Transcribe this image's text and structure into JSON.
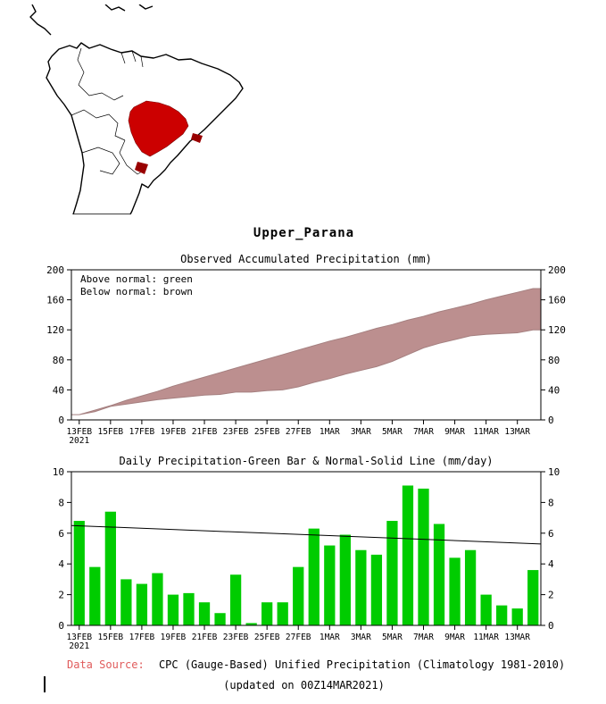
{
  "page": {
    "title": "Upper_Parana",
    "footer": {
      "data_source_label": "Data Source:",
      "data_source_text": "CPC (Gauge-Based) Unified Precipitation (Climatology 1981-2010)",
      "updated_text": "(updated on 00Z14MAR2021)"
    }
  },
  "map": {
    "description": "South America outline map with the Upper Parana basin highlighted in red"
  },
  "colors": {
    "bar_green": "#00cc00",
    "band_brown": "#bc8f8f",
    "band_edge": "#a58080",
    "map_region_red": "#cc0000",
    "map_region_dark_red": "#990000",
    "data_source_red": "#e05c5c",
    "axis_black": "#000000"
  },
  "chart_data": [
    {
      "type": "area",
      "title": "Observed Accumulated Precipitation (mm)",
      "legend": [
        "Above normal: green",
        "Below normal: brown"
      ],
      "categories": [
        "13FEB",
        "14FEB",
        "15FEB",
        "16FEB",
        "17FEB",
        "18FEB",
        "19FEB",
        "20FEB",
        "21FEB",
        "22FEB",
        "23FEB",
        "24FEB",
        "25FEB",
        "26FEB",
        "27FEB",
        "28FEB",
        "1MAR",
        "2MAR",
        "3MAR",
        "4MAR",
        "5MAR",
        "6MAR",
        "7MAR",
        "8MAR",
        "9MAR",
        "10MAR",
        "11MAR",
        "12MAR",
        "13MAR",
        "14MAR"
      ],
      "x_tick_labels": [
        "13FEB",
        "15FEB",
        "17FEB",
        "19FEB",
        "21FEB",
        "23FEB",
        "25FEB",
        "27FEB",
        "1MAR",
        "3MAR",
        "5MAR",
        "7MAR",
        "9MAR",
        "11MAR",
        "13MAR"
      ],
      "x_first_tick_year": "2021",
      "ylim": [
        0,
        200
      ],
      "yticks": [
        0,
        40,
        80,
        120,
        160,
        200
      ],
      "series": [
        {
          "name": "normal accumulated (band upper edge)",
          "values": [
            7,
            13,
            19,
            26,
            32,
            38,
            45,
            51,
            57,
            63,
            69,
            75,
            81,
            87,
            93,
            99,
            105,
            110,
            116,
            122,
            127,
            133,
            138,
            144,
            149,
            154,
            160,
            165,
            170,
            175
          ]
        },
        {
          "name": "observed accumulated (band lower edge)",
          "values": [
            7,
            11,
            18,
            21,
            24,
            27,
            29,
            31,
            33,
            34,
            37,
            37,
            39,
            40,
            44,
            50,
            55,
            61,
            66,
            71,
            78,
            87,
            96,
            102,
            107,
            112,
            114,
            115,
            116,
            120
          ]
        }
      ]
    },
    {
      "type": "bar",
      "title": "Daily Precipitation-Green Bar & Normal-Solid Line (mm/day)",
      "categories": [
        "13FEB",
        "14FEB",
        "15FEB",
        "16FEB",
        "17FEB",
        "18FEB",
        "19FEB",
        "20FEB",
        "21FEB",
        "22FEB",
        "23FEB",
        "24FEB",
        "25FEB",
        "26FEB",
        "27FEB",
        "28FEB",
        "1MAR",
        "2MAR",
        "3MAR",
        "4MAR",
        "5MAR",
        "6MAR",
        "7MAR",
        "8MAR",
        "9MAR",
        "10MAR",
        "11MAR",
        "12MAR",
        "13MAR",
        "14MAR"
      ],
      "x_tick_labels": [
        "13FEB",
        "15FEB",
        "17FEB",
        "19FEB",
        "21FEB",
        "23FEB",
        "25FEB",
        "27FEB",
        "1MAR",
        "3MAR",
        "5MAR",
        "7MAR",
        "9MAR",
        "11MAR",
        "13MAR"
      ],
      "x_first_tick_year": "2021",
      "ylim": [
        0,
        10
      ],
      "yticks": [
        0,
        2,
        4,
        6,
        8,
        10
      ],
      "bars": [
        6.8,
        3.8,
        7.4,
        3.0,
        2.7,
        3.4,
        2.0,
        2.1,
        1.5,
        0.8,
        3.3,
        0.15,
        1.5,
        1.5,
        3.8,
        6.3,
        5.2,
        5.9,
        4.9,
        4.6,
        6.8,
        9.1,
        8.9,
        6.6,
        4.4,
        4.9,
        2.0,
        1.3,
        1.1,
        3.6
      ],
      "normal_line": {
        "start": 6.5,
        "end": 5.3
      }
    }
  ]
}
